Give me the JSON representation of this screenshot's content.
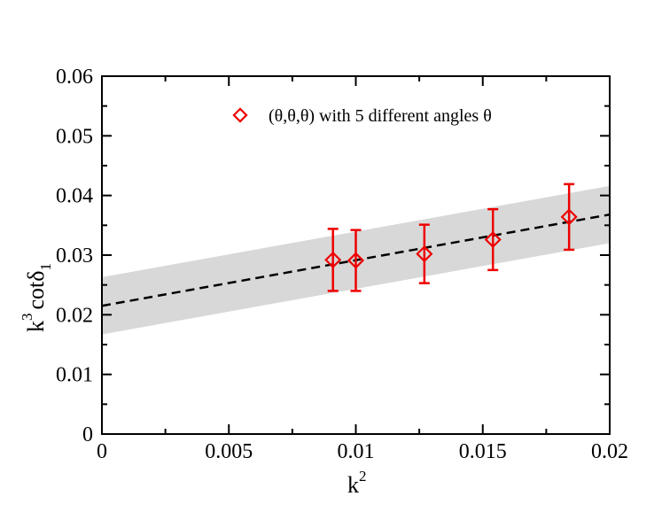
{
  "chart_data": {
    "type": "scatter",
    "title": "",
    "xlabel": {
      "base": "k",
      "sup": "2"
    },
    "ylabel": {
      "base": "k",
      "sup": "3",
      "text": "cotδ",
      "sub": "1"
    },
    "xlim": [
      0,
      0.02
    ],
    "ylim": [
      0,
      0.06
    ],
    "x_ticks": [
      0,
      0.005,
      0.01,
      0.015,
      0.02
    ],
    "x_tick_labels": [
      "0",
      "0.005",
      "0.01",
      "0.015",
      "0.02"
    ],
    "y_ticks": [
      0,
      0.01,
      0.02,
      0.03,
      0.04,
      0.05,
      0.06
    ],
    "y_tick_labels": [
      "0",
      "0.01",
      "0.02",
      "0.03",
      "0.04",
      "0.05",
      "0.06"
    ],
    "legend_position": "top-right",
    "series": [
      {
        "name": "(θ,θ,θ) with 5 different angles θ",
        "marker": "open-diamond",
        "color": "#ee0000",
        "x": [
          0.0091,
          0.01,
          0.0127,
          0.0154,
          0.0184
        ],
        "y": [
          0.0292,
          0.0291,
          0.0302,
          0.0326,
          0.0364
        ],
        "yerr": [
          0.0052,
          0.0051,
          0.0049,
          0.0051,
          0.0055
        ]
      }
    ],
    "fit": {
      "style": "dashed",
      "color": "#000000",
      "intercept": 0.0215,
      "slope": 0.765,
      "band_color": "#d8d8d8",
      "band_halfwidth": 0.0048
    }
  }
}
